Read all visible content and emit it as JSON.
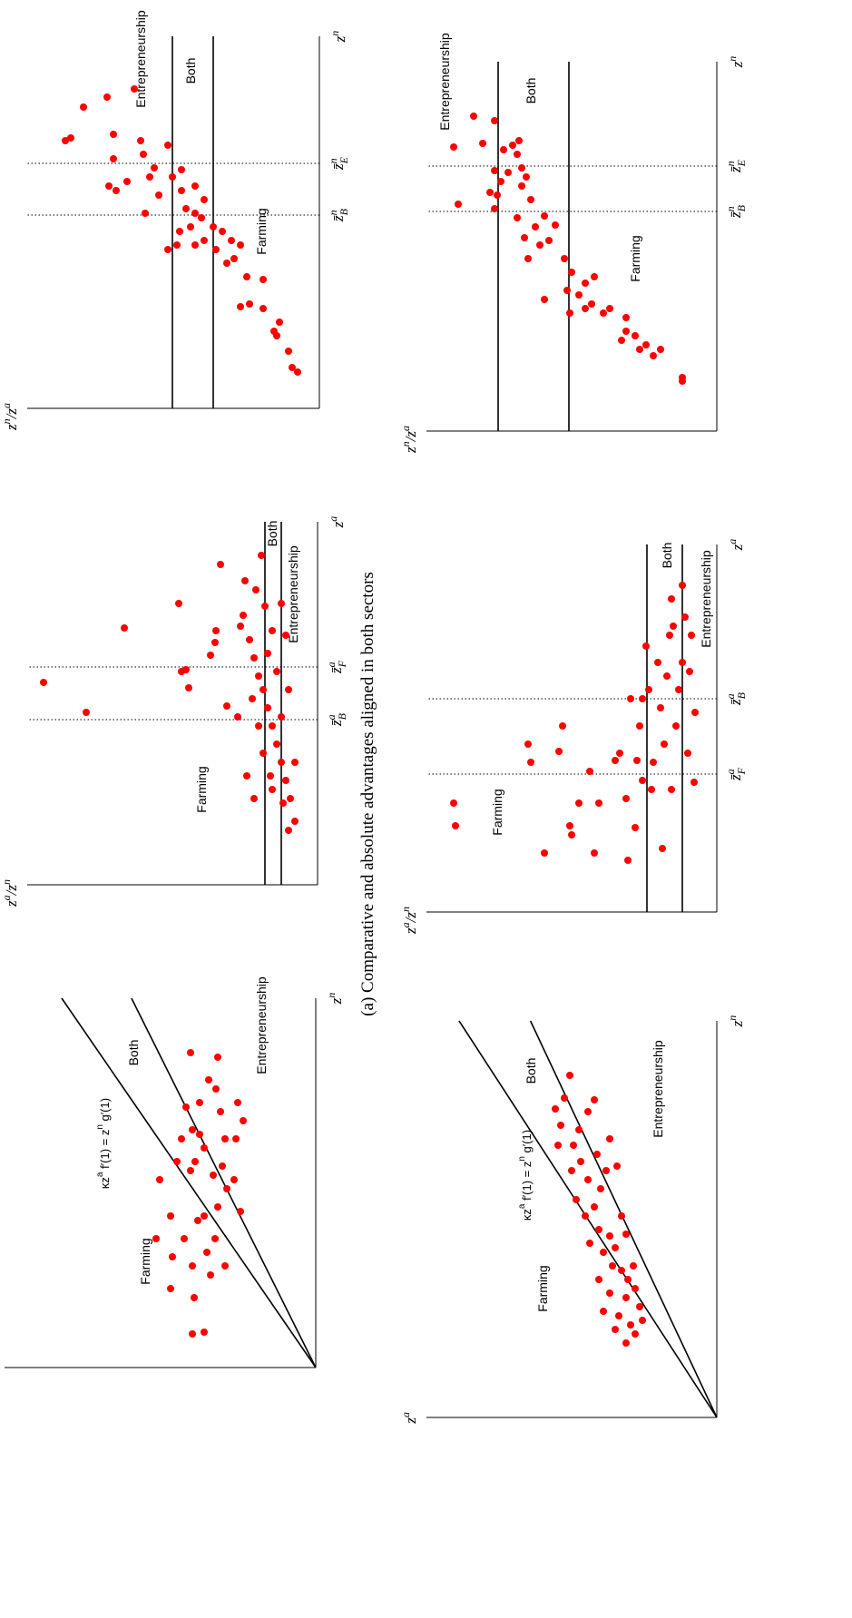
{
  "caption": "(a) Comparative and absolute advantages aligned in both sectors",
  "chart_data": [
    {
      "type": "scatter",
      "color": "#ff0000",
      "x_label": [
        {
          "text": "z"
        },
        {
          "sup": "n"
        }
      ],
      "y_label": [
        {
          "text": "z"
        },
        {
          "sup": "a"
        }
      ],
      "annotations": [
        "Farming",
        "Both",
        "Entrepreneurship"
      ],
      "formula": [
        {
          "text": "κz"
        },
        {
          "sup": "a"
        },
        {
          "text": " f′(1) = z"
        },
        {
          "sup": "n"
        },
        {
          "text": " g′(1)"
        }
      ],
      "xlim": [
        0,
        407
      ],
      "ylim": [
        0,
        343
      ],
      "x": [
        207,
        142,
        87,
        122,
        167,
        227,
        252,
        287,
        347,
        112,
        77,
        37,
        39,
        162,
        142,
        217,
        257,
        317,
        307,
        342,
        282,
        252,
        222,
        212,
        167,
        177,
        142,
        112,
        127,
        252,
        292,
        172,
        207,
        227,
        242,
        262,
        197,
        102,
        272,
        292
      ],
      "values": [
        172,
        176,
        160,
        158,
        160,
        153,
        148,
        143,
        138,
        136,
        134,
        136,
        123,
        130,
        145,
        138,
        128,
        118,
        110,
        108,
        105,
        100,
        103,
        113,
        123,
        108,
        111,
        100,
        120,
        88,
        86,
        83,
        90,
        133,
        123,
        136,
        98,
        116,
        80,
        128
      ]
    },
    {
      "type": "scatter",
      "color": "#ff0000",
      "x_label": [
        {
          "text": "z"
        },
        {
          "sup": "a"
        }
      ],
      "y_label": [
        {
          "text": "z"
        },
        {
          "sup": "a"
        },
        {
          "text": "/z"
        },
        {
          "sup": "n"
        }
      ],
      "annotations": [
        "Farming",
        "Both",
        "Entrepreneurship"
      ],
      "markers": [
        [
          {
            "text": "z̄"
          },
          {
            "sup": "a"
          },
          {
            "sub": "B"
          }
        ],
        [
          {
            "text": "z̄"
          },
          {
            "sup": "a"
          },
          {
            "sub": "F"
          }
        ]
      ],
      "xlim": [
        0,
        400
      ],
      "ylim": [
        0,
        320
      ],
      "x": [
        223,
        190,
        283,
        310,
        353,
        235,
        237,
        217,
        267,
        280,
        197,
        253,
        297,
        120,
        185,
        285,
        270,
        250,
        230,
        215,
        195,
        175,
        155,
        135,
        115,
        95,
        70,
        60,
        105,
        145,
        175,
        185,
        215,
        235,
        255,
        280,
        325,
        307,
        335,
        363,
        275,
        310,
        205,
        120,
        135,
        90,
        95
      ],
      "values": [
        302,
        255,
        213,
        153,
        107,
        150,
        145,
        142,
        113,
        112,
        100,
        118,
        82,
        78,
        88,
        85,
        75,
        70,
        65,
        60,
        55,
        50,
        45,
        40,
        35,
        30,
        25,
        32,
        50,
        60,
        65,
        40,
        32,
        45,
        55,
        50,
        68,
        58,
        80,
        62,
        35,
        40,
        72,
        52,
        25,
        38,
        70
      ]
    },
    {
      "type": "scatter",
      "color": "#ff0000",
      "x_label": [
        {
          "text": "z"
        },
        {
          "sup": "n"
        }
      ],
      "y_label": [
        {
          "text": "z"
        },
        {
          "sup": "n"
        },
        {
          "text": "/z"
        },
        {
          "sup": "a"
        }
      ],
      "annotations": [
        "Farming",
        "Both",
        "Entrepreneurship"
      ],
      "markers": [
        [
          {
            "text": "z̄"
          },
          {
            "sup": "n"
          },
          {
            "sub": "B"
          }
        ],
        [
          {
            "text": "z̄"
          },
          {
            "sup": "n"
          },
          {
            "sub": "E"
          }
        ]
      ],
      "xlim": [
        0,
        410
      ],
      "ylim": [
        0,
        322
      ],
      "x": [
        40,
        45,
        63,
        80,
        85,
        95,
        110,
        115,
        112,
        142,
        145,
        165,
        180,
        185,
        195,
        160,
        175,
        200,
        185,
        210,
        215,
        220,
        195,
        175,
        180,
        180,
        200,
        230,
        240,
        255,
        235,
        215,
        255,
        265,
        280,
        290,
        295,
        302,
        245,
        240,
        250,
        275,
        298,
        295,
        332,
        343,
        352,
        263,
        245
      ],
      "values": [
        24,
        30,
        34,
        47,
        50,
        44,
        62,
        77,
        87,
        62,
        80,
        94,
        87,
        97,
        107,
        102,
        114,
        117,
        127,
        130,
        137,
        147,
        154,
        167,
        157,
        137,
        142,
        127,
        152,
        162,
        177,
        192,
        187,
        182,
        194,
        167,
        197,
        227,
        232,
        224,
        212,
        227,
        274,
        280,
        260,
        234,
        204,
        152,
        137
      ]
    },
    {
      "type": "scatter",
      "color": "#ff0000",
      "x_label": [
        {
          "text": "z"
        },
        {
          "sup": "n"
        }
      ],
      "y_label": [
        {
          "text": "z"
        },
        {
          "sup": "a"
        }
      ],
      "annotations": [
        "Farming",
        "Both",
        "Entrepreneurship"
      ],
      "formula": [
        {
          "text": "κz"
        },
        {
          "sup": "a"
        },
        {
          "text": " f′(1) = z"
        },
        {
          "sup": "n"
        },
        {
          "text": " g′(1)"
        }
      ],
      "xlim": [
        0,
        437
      ],
      "ylim": [
        0,
        320
      ],
      "x": [
        377,
        352,
        340,
        322,
        300,
        300,
        317,
        337,
        350,
        282,
        290,
        272,
        277,
        262,
        240,
        222,
        232,
        252,
        207,
        200,
        182,
        187,
        202,
        167,
        162,
        167,
        152,
        137,
        132,
        142,
        122,
        117,
        112,
        102,
        97,
        92,
        82,
        107,
        272,
        307,
        222,
        192,
        152
      ],
      "values": [
        162,
        168,
        178,
        172,
        175,
        158,
        152,
        142,
        135,
        150,
        132,
        122,
        110,
        142,
        155,
        145,
        135,
        128,
        130,
        118,
        125,
        112,
        100,
        115,
        105,
        92,
        130,
        118,
        100,
        90,
        85,
        125,
        108,
        95,
        112,
        90,
        100,
        82,
        160,
        118,
        105,
        140,
        98
      ]
    },
    {
      "type": "scatter",
      "color": "#ff0000",
      "x_label": [
        {
          "text": "z"
        },
        {
          "sup": "a"
        }
      ],
      "y_label": [
        {
          "text": "z"
        },
        {
          "sup": "a"
        },
        {
          "text": "/z"
        },
        {
          "sup": "n"
        }
      ],
      "annotations": [
        "Farming",
        "Both",
        "Entrepreneurship"
      ],
      "markers": [
        [
          {
            "text": "z̄"
          },
          {
            "sup": "a"
          },
          {
            "sub": "F"
          }
        ],
        [
          {
            "text": "z̄"
          },
          {
            "sup": "a"
          },
          {
            "sub": "B"
          }
        ]
      ],
      "xlim": [
        0,
        405
      ],
      "ylim": [
        0,
        320
      ],
      "x": [
        120,
        95,
        185,
        165,
        65,
        177,
        205,
        95,
        85,
        120,
        155,
        65,
        120,
        167,
        175,
        125,
        57,
        93,
        167,
        205,
        235,
        293,
        245,
        135,
        165,
        225,
        70,
        260,
        305,
        345,
        315,
        205,
        245,
        275,
        325,
        175,
        265,
        305,
        143,
        220,
        275,
        185,
        235,
        135,
        360,
        145
      ],
      "values": [
        290,
        288,
        208,
        205,
        190,
        174,
        170,
        162,
        160,
        152,
        140,
        135,
        130,
        112,
        107,
        100,
        98,
        90,
        88,
        85,
        82,
        78,
        75,
        72,
        70,
        62,
        60,
        55,
        52,
        50,
        48,
        45,
        42,
        38,
        35,
        32,
        30,
        28,
        25,
        24,
        65,
        58,
        95,
        50,
        38,
        82
      ]
    },
    {
      "type": "scatter",
      "color": "#ff0000",
      "x_label": [
        {
          "text": "z"
        },
        {
          "sup": "n"
        }
      ],
      "y_label": [
        {
          "text": "z"
        },
        {
          "sup": "n"
        },
        {
          "text": "/z"
        },
        {
          "sup": "a"
        }
      ],
      "annotations": [
        "Farming",
        "Both",
        "Entrepreneurship"
      ],
      "markers": [
        [
          {
            "text": "z̄"
          },
          {
            "sup": "n"
          },
          {
            "sub": "B"
          }
        ],
        [
          {
            "text": "z̄"
          },
          {
            "sup": "n"
          },
          {
            "sub": "E"
          }
        ]
      ],
      "xlim": [
        0,
        407
      ],
      "ylim": [
        0,
        320
      ],
      "x": [
        55,
        59,
        90,
        83,
        95,
        90,
        105,
        110,
        100,
        125,
        135,
        130,
        140,
        135,
        150,
        170,
        163,
        130,
        155,
        175,
        190,
        145,
        205,
        210,
        190,
        227,
        237,
        225,
        213,
        235,
        255,
        270,
        280,
        305,
        285,
        275,
        260,
        245,
        263,
        310,
        315,
        320,
        287,
        250,
        313,
        317,
        342,
        347,
        290
      ],
      "values": [
        38,
        38,
        62,
        70,
        78,
        85,
        90,
        100,
        105,
        100,
        118,
        125,
        138,
        145,
        152,
        135,
        145,
        162,
        165,
        160,
        168,
        190,
        195,
        185,
        208,
        178,
        190,
        200,
        212,
        220,
        205,
        215,
        210,
        220,
        230,
        238,
        242,
        245,
        250,
        235,
        225,
        218,
        245,
        285,
        290,
        258,
        245,
        268,
        215
      ]
    }
  ]
}
